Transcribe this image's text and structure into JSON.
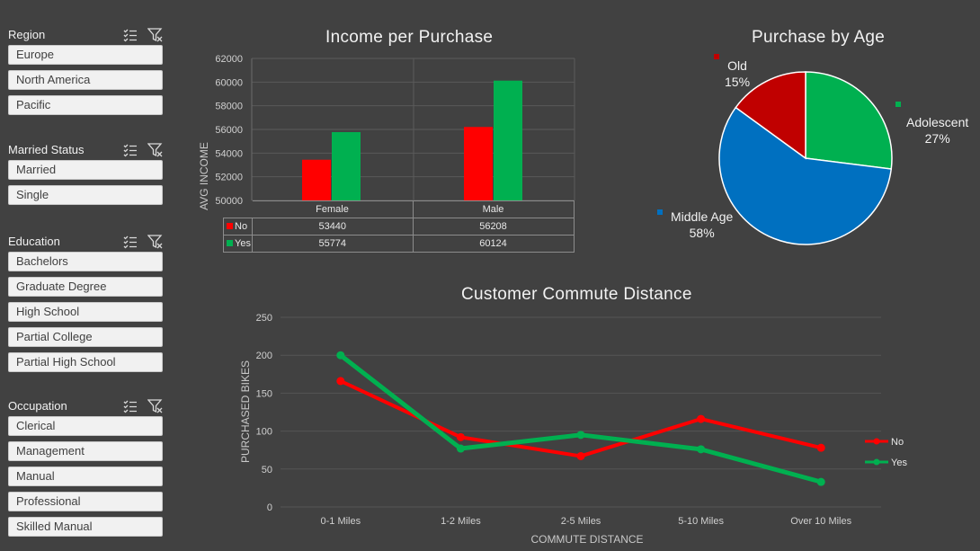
{
  "slicers": [
    {
      "title": "Region",
      "items": [
        "Europe",
        "North America",
        "Pacific"
      ]
    },
    {
      "title": "Married Status",
      "items": [
        "Married",
        "Single"
      ]
    },
    {
      "title": "Education",
      "items": [
        "Bachelors",
        "Graduate Degree",
        "High School",
        "Partial College",
        "Partial High School"
      ]
    },
    {
      "title": "Occupation",
      "items": [
        "Clerical",
        "Management",
        "Manual",
        "Professional",
        "Skilled Manual"
      ]
    }
  ],
  "colors": {
    "no": "#ff0000",
    "yes": "#00b050",
    "old": "#c00000",
    "adolescent": "#00b050",
    "middle": "#0070c0",
    "background": "#414141"
  },
  "icons": {
    "multi_select": "multi-select-icon",
    "clear_filter": "clear-filter-icon"
  },
  "chart_data": [
    {
      "type": "bar",
      "title": "Income per Purchase",
      "ylabel": "AVG INCOME",
      "xlabel": "",
      "ylim": [
        50000,
        62000
      ],
      "yticks": [
        "62000",
        "60000",
        "58000",
        "56000",
        "54000",
        "52000",
        "50000"
      ],
      "categories": [
        "Female",
        "Male"
      ],
      "series": [
        {
          "name": "No",
          "values": [
            53440,
            56208
          ],
          "labels": [
            "53440",
            "56208"
          ]
        },
        {
          "name": "Yes",
          "values": [
            55774,
            60124
          ],
          "labels": [
            "55774",
            "60124"
          ]
        }
      ]
    },
    {
      "type": "pie",
      "title": "Purchase by Age",
      "slices": [
        {
          "name": "Adolescent",
          "value": 27,
          "label": "27%"
        },
        {
          "name": "Middle Age",
          "value": 58,
          "label": "58%"
        },
        {
          "name": "Old",
          "value": 15,
          "label": "15%"
        }
      ]
    },
    {
      "type": "line",
      "title": "Customer Commute Distance",
      "xlabel": "COMMUTE DISTANCE",
      "ylabel": "PURCHASED BIKES",
      "ylim": [
        0,
        250
      ],
      "yticks": [
        "250",
        "200",
        "150",
        "100",
        "50",
        "0"
      ],
      "categories": [
        "0-1 Miles",
        "1-2 Miles",
        "2-5 Miles",
        "5-10 Miles",
        "Over 10 Miles"
      ],
      "series": [
        {
          "name": "No",
          "values": [
            166,
            92,
            67,
            116,
            78
          ]
        },
        {
          "name": "Yes",
          "values": [
            200,
            77,
            95,
            76,
            33
          ]
        }
      ]
    }
  ]
}
